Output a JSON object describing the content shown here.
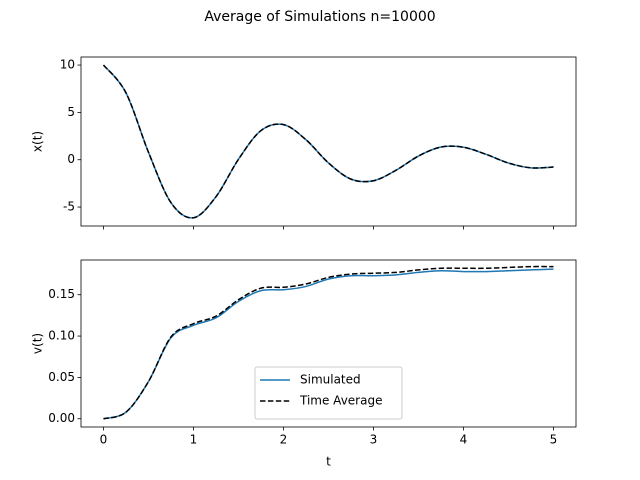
{
  "title": "Average of Simulations n=10000",
  "chart_data": [
    {
      "type": "line",
      "ylabel": "x(t)",
      "show_xticklabels": false,
      "x": [
        0,
        0.25,
        0.5,
        0.75,
        1,
        1.25,
        1.5,
        1.75,
        2,
        2.25,
        2.5,
        2.75,
        3,
        3.25,
        3.5,
        3.75,
        4,
        4.25,
        4.5,
        4.75,
        5
      ],
      "series": [
        {
          "color": "#1f77b4",
          "dash": false,
          "values": [
            10,
            7.06,
            0.78,
            -4.54,
            -6.13,
            -3.9,
            0.05,
            3.08,
            3.71,
            2.11,
            -0.34,
            -2.05,
            -2.22,
            -1.11,
            0.39,
            1.34,
            1.32,
            0.57,
            -0.35,
            -0.86,
            -0.77
          ]
        },
        {
          "color": "#000000",
          "dash": true,
          "values": [
            10,
            7.06,
            0.78,
            -4.54,
            -6.13,
            -3.9,
            0.05,
            3.08,
            3.71,
            2.11,
            -0.34,
            -2.05,
            -2.22,
            -1.11,
            0.39,
            1.34,
            1.32,
            0.57,
            -0.35,
            -0.86,
            -0.77
          ]
        }
      ],
      "xlim": [
        -0.25,
        5.25
      ],
      "xticks": [
        0,
        1,
        2,
        3,
        4,
        5
      ],
      "ylim": [
        -7.0,
        10.85
      ],
      "yticks": [
        -5,
        0,
        5,
        10
      ]
    },
    {
      "type": "line",
      "ylabel": "v(t)",
      "xlabel": "t",
      "show_xticklabels": true,
      "legend": "lower center",
      "x": [
        0,
        0.25,
        0.5,
        0.75,
        1,
        1.25,
        1.5,
        1.75,
        2,
        2.25,
        2.5,
        2.75,
        3,
        3.25,
        3.5,
        3.75,
        4,
        4.25,
        4.5,
        4.75,
        5
      ],
      "series": [
        {
          "name": "Simulated",
          "color": "#1f77b4",
          "dash": false,
          "values": [
            0,
            0.008,
            0.045,
            0.098,
            0.113,
            0.122,
            0.142,
            0.155,
            0.156,
            0.16,
            0.169,
            0.173,
            0.173,
            0.174,
            0.177,
            0.179,
            0.178,
            0.178,
            0.179,
            0.18,
            0.181
          ]
        },
        {
          "name": "Time Average",
          "color": "#000000",
          "dash": true,
          "values": [
            0,
            0.008,
            0.045,
            0.099,
            0.115,
            0.124,
            0.144,
            0.158,
            0.159,
            0.163,
            0.171,
            0.175,
            0.176,
            0.177,
            0.18,
            0.182,
            0.182,
            0.182,
            0.183,
            0.184,
            0.184
          ]
        }
      ],
      "xlim": [
        -0.25,
        5.25
      ],
      "xticks": [
        0,
        1,
        2,
        3,
        4,
        5
      ],
      "ylim": [
        -0.01,
        0.192
      ],
      "yticks": [
        {
          "value": 0,
          "label": "0.00"
        },
        {
          "value": 0.05,
          "label": "0.05"
        },
        {
          "value": 0.1,
          "label": "0.10"
        },
        {
          "value": 0.15,
          "label": "0.15"
        }
      ]
    }
  ]
}
